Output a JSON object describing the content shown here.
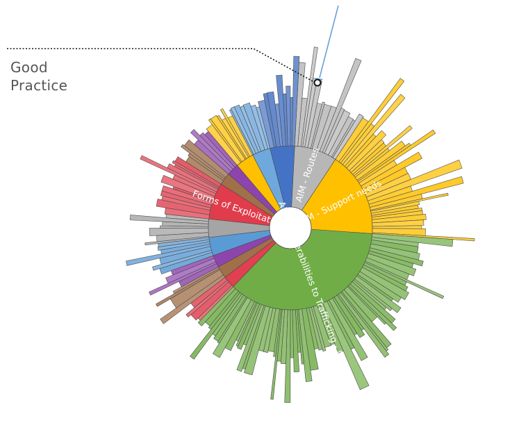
{
  "callout": {
    "line1": "Good",
    "line2": "Practice"
  },
  "colors": {
    "routes": "#bdbdbd",
    "support": "#ffc000",
    "vulnerabilities": "#70ad47",
    "exploitation": "#e03c4b",
    "blue": "#5b9bd5",
    "orange": "#ed7d31",
    "brown": "#a0704b",
    "purple": "#9b59b6",
    "darkgray": "#7f7f7f",
    "highlight_arrow": "#6a9fd8"
  },
  "chart_data": {
    "type": "sunburst",
    "title": "",
    "inner_ring": [
      {
        "label": "AIM - Routes",
        "value": 7,
        "color": "#b7b7b7"
      },
      {
        "label": "AIM - Support needs",
        "value": 14,
        "color": "#ffc000"
      },
      {
        "label": "AIM - Vulnerabilities to Trafficking - D",
        "value": 30,
        "color": "#70ad47"
      },
      {
        "label": "",
        "value": 2,
        "color": "#e04050"
      },
      {
        "label": "",
        "value": 2,
        "color": "#a0704b"
      },
      {
        "label": "",
        "value": 2,
        "color": "#8e44ad"
      },
      {
        "label": "",
        "value": 3,
        "color": "#5b9bd5"
      },
      {
        "label": "",
        "value": 3,
        "color": "#a5a5a5"
      },
      {
        "label": "Forms of Exploitation",
        "value": 6,
        "color": "#e03c4b"
      },
      {
        "label": "",
        "value": 2,
        "color": "#a0704b"
      },
      {
        "label": "",
        "value": 2,
        "color": "#8e44ad"
      },
      {
        "label": "",
        "value": 3,
        "color": "#ffc000"
      },
      {
        "label": "",
        "value": 3,
        "color": "#6fa8dc"
      },
      {
        "label": "",
        "value": 4,
        "color": "#4472c4"
      }
    ]
  }
}
